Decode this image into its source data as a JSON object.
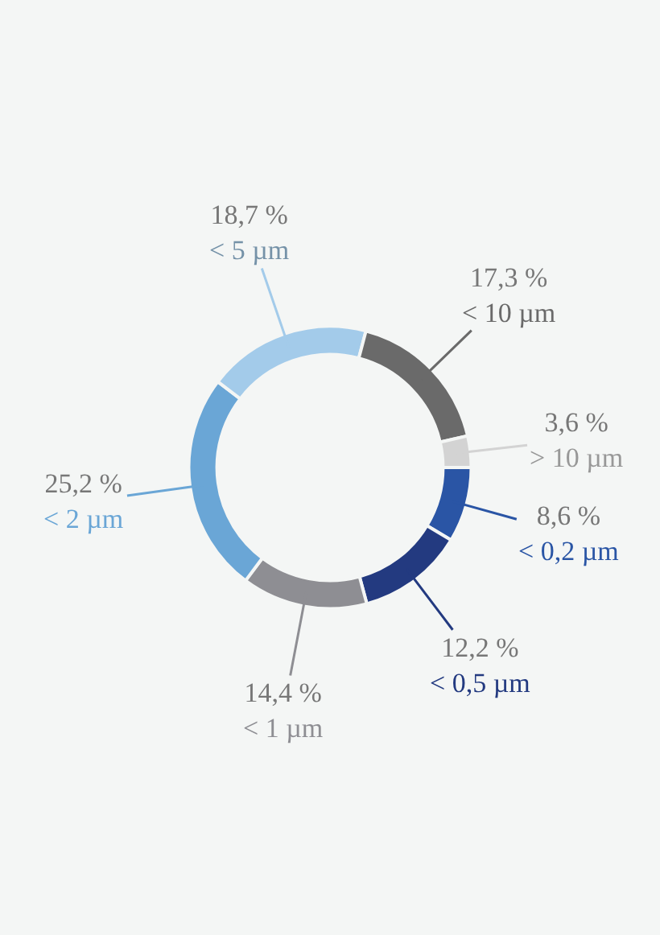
{
  "chart_data": {
    "type": "donut",
    "categories": [
      "< 0,2 µm",
      "< 0,5 µm",
      "< 1 µm",
      "< 2 µm",
      "< 5 µm",
      "< 10 µm",
      "> 10 µm"
    ],
    "values": [
      8.6,
      12.2,
      14.4,
      25.2,
      18.7,
      17.3,
      3.6
    ],
    "value_labels": [
      "8,6 %",
      "12,2 %",
      "14,4 %",
      "25,2 %",
      "18,7 %",
      "17,3 %",
      "3,6 %"
    ],
    "colors": [
      "#2a55a5",
      "#233a80",
      "#8e8e93",
      "#6aa6d6",
      "#a3cbea",
      "#6a6a6a",
      "#d3d3d3"
    ]
  }
}
